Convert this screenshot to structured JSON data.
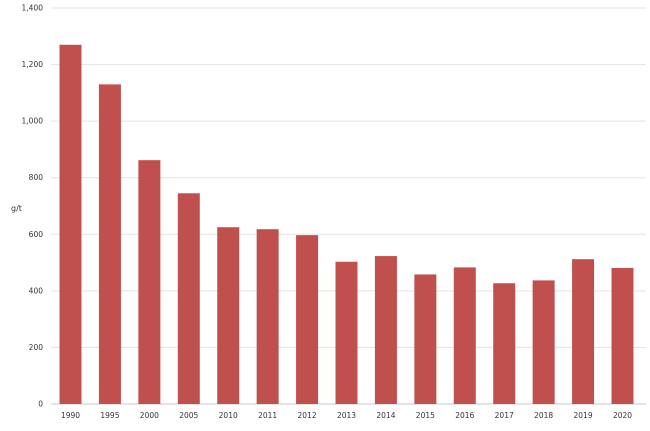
{
  "chart_data": {
    "type": "bar",
    "title": "",
    "xlabel": "",
    "ylabel": "g/t",
    "ylim": [
      0,
      1400
    ],
    "yticks": [
      0,
      200,
      400,
      600,
      800,
      1000,
      1200,
      1400
    ],
    "ytick_labels": [
      "0",
      "200",
      "400",
      "600",
      "800",
      "1,000",
      "1,200",
      "1,400"
    ],
    "grid": true,
    "categories": [
      "1990",
      "1995",
      "2000",
      "2005",
      "2010",
      "2011",
      "2012",
      "2013",
      "2014",
      "2015",
      "2016",
      "2017",
      "2018",
      "2019",
      "2020"
    ],
    "values": [
      1270,
      1130,
      862,
      745,
      625,
      618,
      597,
      503,
      523,
      458,
      483,
      427,
      437,
      512,
      481
    ],
    "bar_color": "#c0504d"
  }
}
